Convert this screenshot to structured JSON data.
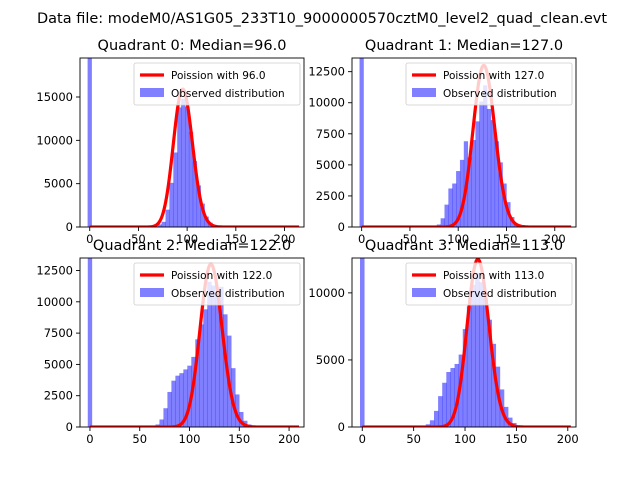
{
  "figure": {
    "suptitle": "Data file: modeM0/AS1G05_233T10_9000000570cztM0_level2_quad_clean.evt"
  },
  "chart_data": [
    {
      "type": "bar",
      "title": "Quadrant 0: Median=96.0",
      "median": 96.0,
      "xlim": [
        -10,
        220
      ],
      "ylim": [
        0,
        19500
      ],
      "xticks": [
        0,
        50,
        100,
        150,
        200
      ],
      "yticks": [
        0,
        5000,
        10000,
        15000
      ],
      "ytick_labels": [
        "0",
        "5000",
        "10000",
        "15000"
      ],
      "xtick_labels": [
        "0",
        "50",
        "100",
        "150",
        "200"
      ],
      "bin_width": 4.4,
      "hist_x": [
        0,
        72,
        76,
        80,
        84,
        88,
        92,
        96,
        100,
        104,
        108,
        112,
        116,
        120,
        124,
        128
      ],
      "hist_y": [
        19500,
        300,
        600,
        2000,
        5100,
        8600,
        13800,
        14800,
        13900,
        11000,
        7600,
        4800,
        2700,
        1200,
        500,
        200
      ],
      "legend": [
        "Poission with 96.0",
        "Observed distribution"
      ],
      "legend_position": "top-right",
      "series": [
        {
          "name": "Poission with 96.0",
          "color": "#ff0000",
          "mean": 96.0,
          "peak": 15900
        },
        {
          "name": "Observed distribution",
          "color": "#0000ff"
        }
      ]
    },
    {
      "type": "bar",
      "title": "Quadrant 1: Median=127.0",
      "median": 127.0,
      "xlim": [
        -10,
        222
      ],
      "ylim": [
        0,
        13600
      ],
      "xticks": [
        0,
        50,
        100,
        150,
        200
      ],
      "yticks": [
        0,
        2500,
        5000,
        7500,
        10000,
        12500
      ],
      "ytick_labels": [
        "0",
        "2500",
        "5000",
        "7500",
        "10000",
        "12500"
      ],
      "xtick_labels": [
        "0",
        "50",
        "100",
        "150",
        "200"
      ],
      "bin_width": 4.4,
      "hist_x": [
        0,
        80,
        84,
        88,
        92,
        96,
        100,
        104,
        108,
        112,
        116,
        120,
        124,
        128,
        132,
        136,
        140,
        144,
        148,
        152,
        156,
        160
      ],
      "hist_y": [
        13600,
        200,
        700,
        1800,
        3100,
        3500,
        4500,
        5400,
        6900,
        5600,
        7000,
        8500,
        10100,
        11400,
        9500,
        8600,
        6900,
        5200,
        3500,
        2000,
        800,
        200
      ],
      "legend": [
        "Poission with 127.0",
        "Observed distribution"
      ],
      "legend_position": "top-right",
      "series": [
        {
          "name": "Poission with 127.0",
          "color": "#ff0000",
          "mean": 127.0,
          "peak": 13000
        },
        {
          "name": "Observed distribution",
          "color": "#0000ff"
        }
      ]
    },
    {
      "type": "bar",
      "title": "Quadrant 2: Median=122.0",
      "median": 122.0,
      "xlim": [
        -10,
        215
      ],
      "ylim": [
        0,
        13500
      ],
      "xticks": [
        0,
        50,
        100,
        150,
        200
      ],
      "yticks": [
        0,
        2500,
        5000,
        7500,
        10000,
        12500
      ],
      "ytick_labels": [
        "0",
        "2500",
        "5000",
        "7500",
        "10000",
        "12500"
      ],
      "xtick_labels": [
        "0",
        "50",
        "100",
        "150",
        "200"
      ],
      "bin_width": 4.4,
      "hist_x": [
        0,
        68,
        72,
        76,
        80,
        84,
        88,
        92,
        96,
        100,
        104,
        108,
        112,
        116,
        120,
        124,
        128,
        132,
        136,
        140,
        144,
        148,
        152,
        156,
        160
      ],
      "hist_y": [
        13500,
        200,
        600,
        1500,
        2800,
        3700,
        4100,
        4300,
        4600,
        4900,
        5600,
        7000,
        8200,
        9400,
        11600,
        11300,
        10500,
        11200,
        9000,
        7300,
        4700,
        2600,
        1200,
        500,
        200
      ],
      "legend": [
        "Poission with 122.0",
        "Observed distribution"
      ],
      "legend_position": "top-right",
      "series": [
        {
          "name": "Poission with 122.0",
          "color": "#ff0000",
          "mean": 122.0,
          "peak": 13000
        },
        {
          "name": "Observed distribution",
          "color": "#0000ff"
        }
      ]
    },
    {
      "type": "bar",
      "title": "Quadrant 3: Median=113.0",
      "median": 113.0,
      "xlim": [
        -10,
        208
      ],
      "ylim": [
        0,
        12600
      ],
      "xticks": [
        0,
        50,
        100,
        150,
        200
      ],
      "yticks": [
        0,
        5000,
        10000
      ],
      "ytick_labels": [
        "0",
        "5000",
        "10000"
      ],
      "xtick_labels": [
        "0",
        "50",
        "100",
        "150",
        "200"
      ],
      "bin_width": 4.4,
      "hist_x": [
        0,
        64,
        68,
        72,
        76,
        80,
        84,
        88,
        92,
        96,
        100,
        104,
        108,
        112,
        116,
        120,
        124,
        128,
        132,
        136,
        140,
        144,
        148,
        152
      ],
      "hist_y": [
        12600,
        200,
        500,
        1200,
        2300,
        3300,
        4100,
        4400,
        4700,
        5400,
        7300,
        9000,
        10600,
        11500,
        10800,
        9600,
        8000,
        6200,
        4500,
        2800,
        1500,
        700,
        300,
        100
      ],
      "legend": [
        "Poission with 113.0",
        "Observed distribution"
      ],
      "legend_position": "top-right",
      "series": [
        {
          "name": "Poission with 113.0",
          "color": "#ff0000",
          "mean": 113.0,
          "peak": 12500
        },
        {
          "name": "Observed distribution",
          "color": "#0000ff"
        }
      ]
    }
  ]
}
